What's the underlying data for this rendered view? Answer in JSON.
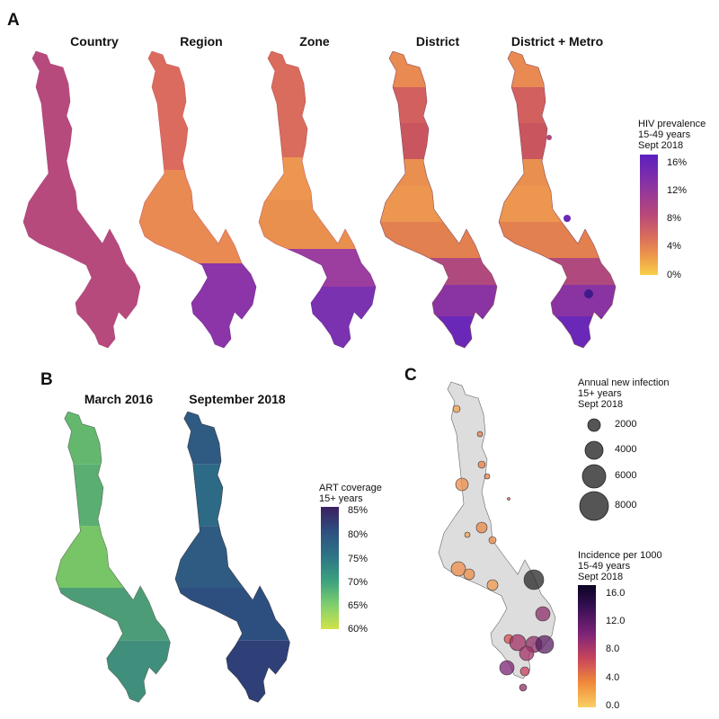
{
  "panel_a": {
    "letter": "A",
    "maps": [
      "Country",
      "Region",
      "Zone",
      "District",
      "District + Metro"
    ],
    "legend": {
      "title": "HIV prevalence\n15-49 years\nSept 2018",
      "ticks": [
        "16%",
        "12%",
        "8%",
        "4%",
        "0%"
      ]
    }
  },
  "panel_b": {
    "letter": "B",
    "maps": [
      "March 2016",
      "September 2018"
    ],
    "legend": {
      "title": "ART coverage\n15+ years",
      "ticks": [
        "85%",
        "80%",
        "75%",
        "70%",
        "65%",
        "60%"
      ]
    }
  },
  "panel_c": {
    "letter": "C",
    "size_legend": {
      "title": "Annual new infection\n15+ years\nSept 2018",
      "items": [
        "2000",
        "4000",
        "6000",
        "8000"
      ]
    },
    "color_legend": {
      "title": "Incidence per 1000\n15-49 years\nSept 2018",
      "ticks": [
        "16.0",
        "12.0",
        "8.0",
        "4.0",
        "0.0"
      ]
    }
  },
  "colors": {
    "prevalence_scale": [
      "#f7d04a",
      "#ee9a4c",
      "#d96c5c",
      "#b8487a",
      "#8a33a3",
      "#5b1fbf"
    ],
    "art_scale": [
      "#d2e34a",
      "#7fcf6e",
      "#3aa07f",
      "#2d7386",
      "#2f4f80",
      "#3b1f5e"
    ],
    "incidence_scale": [
      "#f9d064",
      "#f08a3a",
      "#c8455c",
      "#7e2478",
      "#2e0d4d",
      "#0b0522"
    ],
    "bubble_face": "#555555",
    "base_map": "#dddddd"
  }
}
